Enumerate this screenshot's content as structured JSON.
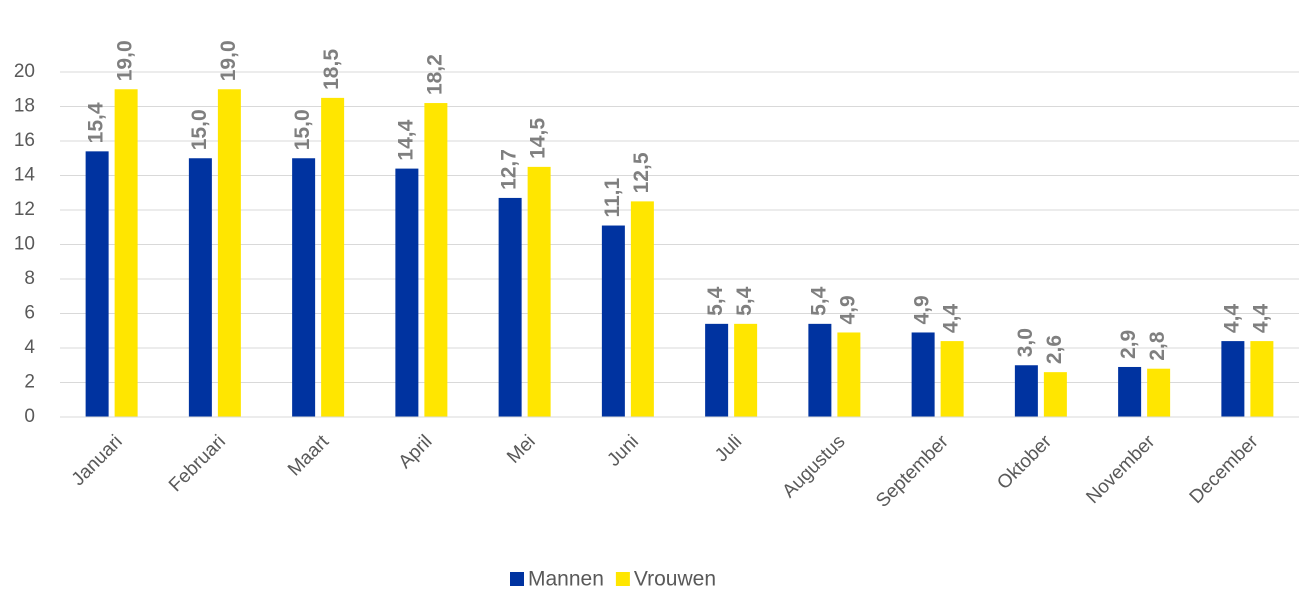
{
  "chart_data": {
    "type": "bar",
    "categories": [
      "Januari",
      "Februari",
      "Maart",
      "April",
      "Mei",
      "Juni",
      "Juli",
      "Augustus",
      "September",
      "Oktober",
      "November",
      "December"
    ],
    "series": [
      {
        "name": "Mannen",
        "color": "#0033a0",
        "values": [
          15.4,
          15.0,
          15.0,
          14.4,
          12.7,
          11.1,
          5.4,
          5.4,
          4.9,
          3.0,
          2.9,
          4.4
        ],
        "value_labels": [
          "15,4",
          "15,0",
          "15,0",
          "14,4",
          "12,7",
          "11,1",
          "5,4",
          "5,4",
          "4,9",
          "3,0",
          "2,9",
          "4,4"
        ]
      },
      {
        "name": "Vrouwen",
        "color": "#ffe600",
        "values": [
          19.0,
          19.0,
          18.5,
          18.2,
          14.5,
          12.5,
          5.4,
          4.9,
          4.4,
          2.6,
          2.8,
          4.4
        ],
        "value_labels": [
          "19,0",
          "19,0",
          "18,5",
          "18,2",
          "14,5",
          "12,5",
          "5,4",
          "4,9",
          "4,4",
          "2,6",
          "2,8",
          "4,4"
        ]
      }
    ],
    "ylim": [
      0,
      20
    ],
    "yticks": [
      0,
      2,
      4,
      6,
      8,
      10,
      12,
      14,
      16,
      18,
      20
    ],
    "grid": true,
    "legend": "bottom"
  }
}
